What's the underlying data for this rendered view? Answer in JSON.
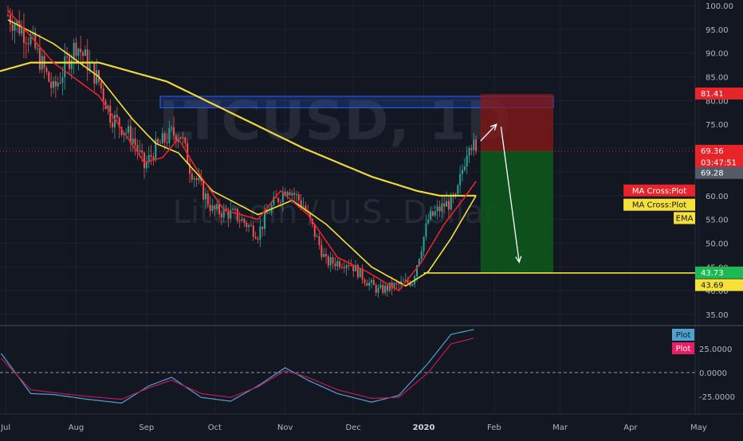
{
  "watermark": {
    "symbol": "LTCUSD, 1D",
    "description": "Litecoin / U.S. Dollar"
  },
  "colors": {
    "background": "#131722",
    "grid": "#1e222d",
    "axis_text": "#b2b5be",
    "candle_up": "#26a69a",
    "candle_down": "#ef5350",
    "ma_red": "#e8242b",
    "ma_yellow": "#f5e13a",
    "ema_yellow": "#f0d83c",
    "zone_blue": "#2962ff",
    "zone_red": "#8b1a1a",
    "zone_green": "#0e5a1a",
    "osc_blue": "#4fa3d1",
    "osc_red": "#c2185b"
  },
  "price_axis": {
    "ticks": [
      "100.00",
      "95.00",
      "90.00",
      "85.00",
      "80.00",
      "75.00",
      "70.00",
      "65.00",
      "60.00",
      "55.00",
      "50.00",
      "45.00",
      "40.00",
      "35.00"
    ]
  },
  "price_tags": [
    {
      "label": "81.41",
      "value": 81.41,
      "bg": "#e8242b",
      "fg": "#ffffff"
    },
    {
      "label": "69.36",
      "value": 69.36,
      "bg": "#e8242b",
      "fg": "#ffffff"
    },
    {
      "label": "03:47:51",
      "value": 66.9,
      "bg": "#e8242b",
      "fg": "#ffffff"
    },
    {
      "label": "69.28",
      "value": 64.7,
      "bg": "#555a66",
      "fg": "#ffffff"
    },
    {
      "label": "43.73",
      "value": 43.73,
      "bg": "#1db954",
      "fg": "#ffffff"
    },
    {
      "label": "43.69",
      "value": 41.1,
      "bg": "#f5e13a",
      "fg": "#131722"
    }
  ],
  "legend_tags": [
    {
      "label": "MA Cross:Plot",
      "bg": "#e8242b",
      "fg": "#ffffff",
      "value": 61.0
    },
    {
      "label": "MA Cross:Plot",
      "bg": "#f5e13a",
      "fg": "#131722",
      "value": 58.0
    },
    {
      "label": "EMA",
      "bg": "#f5e13a",
      "fg": "#131722",
      "value": 55.2
    }
  ],
  "osc_axis": {
    "ticks": [
      "25.0000",
      "0.0000",
      "-25.0000"
    ]
  },
  "osc_legend": [
    {
      "label": "Plot",
      "bg": "#4fa3d1",
      "fg": "#131722"
    },
    {
      "label": "Plot",
      "bg": "#e91e63",
      "fg": "#ffffff"
    }
  ],
  "time_axis": {
    "labels": [
      "Jul",
      "Aug",
      "Sep",
      "Oct",
      "Nov",
      "Dec",
      "2020",
      "Feb",
      "Mar",
      "Apr",
      "May"
    ]
  },
  "chart_data": {
    "type": "candlestick",
    "symbol": "LTCUSD",
    "interval": "1D",
    "ylim": [
      32,
      103
    ],
    "months": [
      "Jul",
      "Aug",
      "Sep",
      "Oct",
      "Nov",
      "Dec",
      "2020",
      "Feb",
      "Mar",
      "Apr",
      "May"
    ],
    "close_trend": [
      [
        0,
        98
      ],
      [
        10,
        93
      ],
      [
        20,
        82
      ],
      [
        30,
        92
      ],
      [
        40,
        84
      ],
      [
        45,
        77
      ],
      [
        55,
        72
      ],
      [
        60,
        66
      ],
      [
        65,
        70
      ],
      [
        72,
        73
      ],
      [
        76,
        73
      ],
      [
        80,
        66
      ],
      [
        90,
        57
      ],
      [
        100,
        56
      ],
      [
        110,
        52
      ],
      [
        115,
        57
      ],
      [
        123,
        62
      ],
      [
        130,
        58
      ],
      [
        140,
        46
      ],
      [
        150,
        46
      ],
      [
        158,
        42
      ],
      [
        163,
        40
      ],
      [
        170,
        41
      ],
      [
        178,
        42
      ],
      [
        185,
        55
      ],
      [
        192,
        58
      ],
      [
        197,
        59
      ],
      [
        203,
        72
      ],
      [
        206,
        69.36
      ]
    ],
    "ma_red_trend": [
      [
        0,
        99
      ],
      [
        20,
        88
      ],
      [
        40,
        81
      ],
      [
        50,
        74
      ],
      [
        60,
        67
      ],
      [
        68,
        68
      ],
      [
        75,
        72
      ],
      [
        85,
        64
      ],
      [
        95,
        57
      ],
      [
        110,
        55
      ],
      [
        120,
        61
      ],
      [
        132,
        56
      ],
      [
        145,
        47
      ],
      [
        158,
        44
      ],
      [
        172,
        40
      ],
      [
        182,
        46
      ],
      [
        192,
        54
      ],
      [
        200,
        59
      ],
      [
        206,
        63
      ]
    ],
    "ma_yellow_trend": [
      [
        0,
        97
      ],
      [
        20,
        92
      ],
      [
        40,
        85
      ],
      [
        55,
        76
      ],
      [
        65,
        71
      ],
      [
        75,
        69
      ],
      [
        90,
        61
      ],
      [
        110,
        56
      ],
      [
        125,
        59
      ],
      [
        140,
        54
      ],
      [
        160,
        45
      ],
      [
        175,
        41
      ],
      [
        185,
        44
      ],
      [
        195,
        51
      ],
      [
        206,
        60
      ]
    ],
    "ema_trend": [
      [
        -20,
        84
      ],
      [
        10,
        88
      ],
      [
        40,
        88
      ],
      [
        70,
        84
      ],
      [
        100,
        77
      ],
      [
        130,
        70
      ],
      [
        160,
        64
      ],
      [
        180,
        61
      ],
      [
        190,
        60
      ],
      [
        206,
        60
      ]
    ],
    "horizontal_level": 43.73,
    "current_price": 69.36,
    "supply_zone": {
      "x1": 67,
      "x2": 240,
      "y1": 78.5,
      "y2": 80.9
    },
    "position": {
      "x1": 208,
      "x2": 240,
      "entry": 69.36,
      "stop": 81.41,
      "target": 43.73
    },
    "arrows": [
      {
        "from": [
          208,
          71.5
        ],
        "to": [
          215,
          75
        ]
      },
      {
        "from": [
          217,
          74.5
        ],
        "to": [
          225,
          46
        ]
      }
    ],
    "oscillator": {
      "ylim": [
        -46,
        46
      ],
      "series": [
        {
          "color": "blue",
          "points": [
            [
              -3,
              20
            ],
            [
              10,
              -22
            ],
            [
              20,
              -23
            ],
            [
              35,
              -28
            ],
            [
              50,
              -32
            ],
            [
              62,
              -14
            ],
            [
              72,
              -5
            ],
            [
              85,
              -26
            ],
            [
              98,
              -30
            ],
            [
              110,
              -14
            ],
            [
              122,
              5
            ],
            [
              132,
              -8
            ],
            [
              145,
              -22
            ],
            [
              160,
              -31
            ],
            [
              172,
              -24
            ],
            [
              185,
              10
            ],
            [
              195,
              40
            ],
            [
              205,
              45
            ]
          ]
        },
        {
          "color": "red",
          "points": [
            [
              -3,
              15
            ],
            [
              10,
              -18
            ],
            [
              20,
              -21
            ],
            [
              35,
              -25
            ],
            [
              50,
              -28
            ],
            [
              62,
              -16
            ],
            [
              72,
              -8
            ],
            [
              85,
              -22
            ],
            [
              98,
              -26
            ],
            [
              110,
              -15
            ],
            [
              122,
              2
            ],
            [
              132,
              -5
            ],
            [
              145,
              -18
            ],
            [
              160,
              -27
            ],
            [
              172,
              -26
            ],
            [
              185,
              0
            ],
            [
              195,
              30
            ],
            [
              205,
              36
            ]
          ]
        }
      ]
    }
  }
}
